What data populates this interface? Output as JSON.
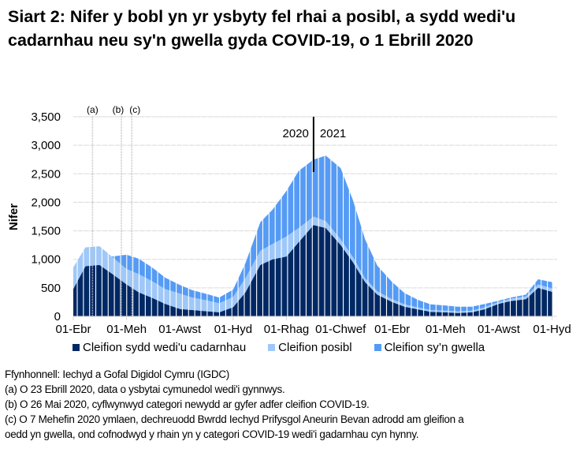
{
  "title": "Siart 2: Nifer y bobl yn yr ysbyty fel rhai a posibl, a sydd wedi'u cadarnhau neu sy'n gwella gyda COVID-19, o 1 Ebrill 2020",
  "colors": {
    "confirmed": "#002864",
    "suspected": "#9FC8F8",
    "recovering": "#559BF5",
    "gridline": "#D9D9D9",
    "annotation_line": "#BFBFBF"
  },
  "legend": [
    {
      "label": "Cleifion sydd wedi'u cadarnhau",
      "color": "#002864"
    },
    {
      "label": "Cleifion posibl",
      "color": "#9FC8F8"
    },
    {
      "label": "Cleifion sy’n gwella",
      "color": "#559BF5"
    }
  ],
  "notes": {
    "source": "Ffynhonnell: Iechyd a Gofal Digidol Cymru (IGDC)",
    "a": "(a) O 23 Ebrill 2020, data o ysbytai cymunedol wedi'i gynnwys.",
    "b": "(b) O 26 Mai 2020, cyflwynwyd categori newydd ar gyfer adfer cleifion COVID-19.",
    "c1": "(c) O 7 Mehefin 2020 ymlaen, dechreuodd Bwrdd Iechyd Prifysgol Aneurin Bevan adrodd am gleifion a",
    "c2": "oedd yn gwella, ond cofnodwyd y rhain yn y categori COVID-19 wedi'i gadarnhau cyn hynny."
  },
  "chart_data": {
    "type": "area",
    "stacked": true,
    "title": "Siart 2: Nifer y bobl yn yr ysbyty fel rhai a posibl, a sydd wedi'u cadarnhau neu sy'n gwella gyda COVID-19, o 1 Ebrill 2020",
    "xlabel": "",
    "ylabel": "Nifer",
    "ylim": [
      0,
      3500
    ],
    "yticks": [
      0,
      500,
      1000,
      1500,
      2000,
      2500,
      3000,
      3500
    ],
    "ytick_labels": [
      "0",
      "500",
      "1,000",
      "1,500",
      "2,000",
      "2,500",
      "3,000",
      "3,500"
    ],
    "xtick_labels": [
      "01-Ebr",
      "01-Meh",
      "01-Awst",
      "01-Hyd",
      "01-Rhag",
      "01-Chwef",
      "01-Ebr",
      "01-Meh",
      "01-Awst",
      "01-Hyd"
    ],
    "grid": true,
    "legend_position": "bottom",
    "annotations": [
      {
        "label": "(a)",
        "x": "2020-04-23"
      },
      {
        "label": "(b)",
        "x": "2020-05-26"
      },
      {
        "label": "(c)",
        "x": "2020-06-07"
      },
      {
        "label": "2020 | 2021",
        "x": "2021-01-01"
      }
    ],
    "x": [
      "2020-04-01",
      "2020-04-15",
      "2020-05-01",
      "2020-05-15",
      "2020-06-01",
      "2020-06-15",
      "2020-07-01",
      "2020-07-15",
      "2020-08-01",
      "2020-08-15",
      "2020-09-01",
      "2020-09-15",
      "2020-10-01",
      "2020-10-15",
      "2020-11-01",
      "2020-11-15",
      "2020-12-01",
      "2020-12-15",
      "2021-01-01",
      "2021-01-15",
      "2021-02-01",
      "2021-02-15",
      "2021-03-01",
      "2021-03-15",
      "2021-04-01",
      "2021-04-15",
      "2021-05-01",
      "2021-05-15",
      "2021-06-01",
      "2021-06-15",
      "2021-07-01",
      "2021-07-15",
      "2021-08-01",
      "2021-08-15",
      "2021-09-01",
      "2021-09-15",
      "2021-10-01"
    ],
    "series": [
      {
        "name": "Cleifion sydd wedi'u cadarnhau",
        "values": [
          480,
          880,
          900,
          750,
          560,
          420,
          320,
          220,
          130,
          110,
          90,
          70,
          160,
          420,
          900,
          1000,
          1050,
          1300,
          1600,
          1550,
          1250,
          950,
          600,
          380,
          250,
          170,
          120,
          80,
          70,
          60,
          70,
          120,
          220,
          270,
          300,
          500,
          430
        ]
      },
      {
        "name": "Cleifion posibl",
        "values": [
          380,
          330,
          330,
          300,
          270,
          320,
          290,
          260,
          270,
          220,
          190,
          160,
          180,
          250,
          250,
          270,
          350,
          250,
          150,
          120,
          100,
          90,
          70,
          60,
          50,
          40,
          35,
          30,
          30,
          30,
          30,
          35,
          35,
          40,
          50,
          60,
          60
        ]
      },
      {
        "name": "Cleifion sy’n gwella",
        "values": [
          0,
          0,
          0,
          0,
          250,
          270,
          240,
          200,
          150,
          130,
          110,
          100,
          130,
          260,
          500,
          600,
          800,
          1000,
          1000,
          1150,
          1250,
          1000,
          680,
          450,
          300,
          200,
          130,
          100,
          90,
          80,
          70,
          60,
          20,
          20,
          30,
          90,
          110
        ]
      }
    ]
  }
}
